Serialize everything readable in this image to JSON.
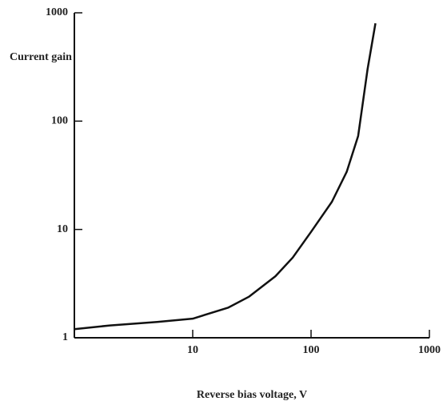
{
  "chart_data": {
    "type": "line",
    "ylabel": "Current gain",
    "xlabel": "Reverse bias voltage, V",
    "x": [
      1,
      2,
      5,
      10,
      20,
      30,
      50,
      70,
      100,
      150,
      200,
      250,
      300,
      350
    ],
    "series": [
      {
        "name": "Current gain",
        "color": "#111111",
        "values": [
          1.2,
          1.3,
          1.4,
          1.5,
          1.9,
          2.4,
          3.7,
          5.5,
          9.5,
          18,
          34,
          73,
          300,
          800
        ]
      }
    ],
    "xlim": [
      1,
      1000
    ],
    "ylim": [
      1,
      1000
    ],
    "xticks": [
      10,
      100,
      1000
    ],
    "yticks": [
      1,
      10,
      100,
      1000
    ],
    "xscale": "log",
    "yscale": "log"
  }
}
